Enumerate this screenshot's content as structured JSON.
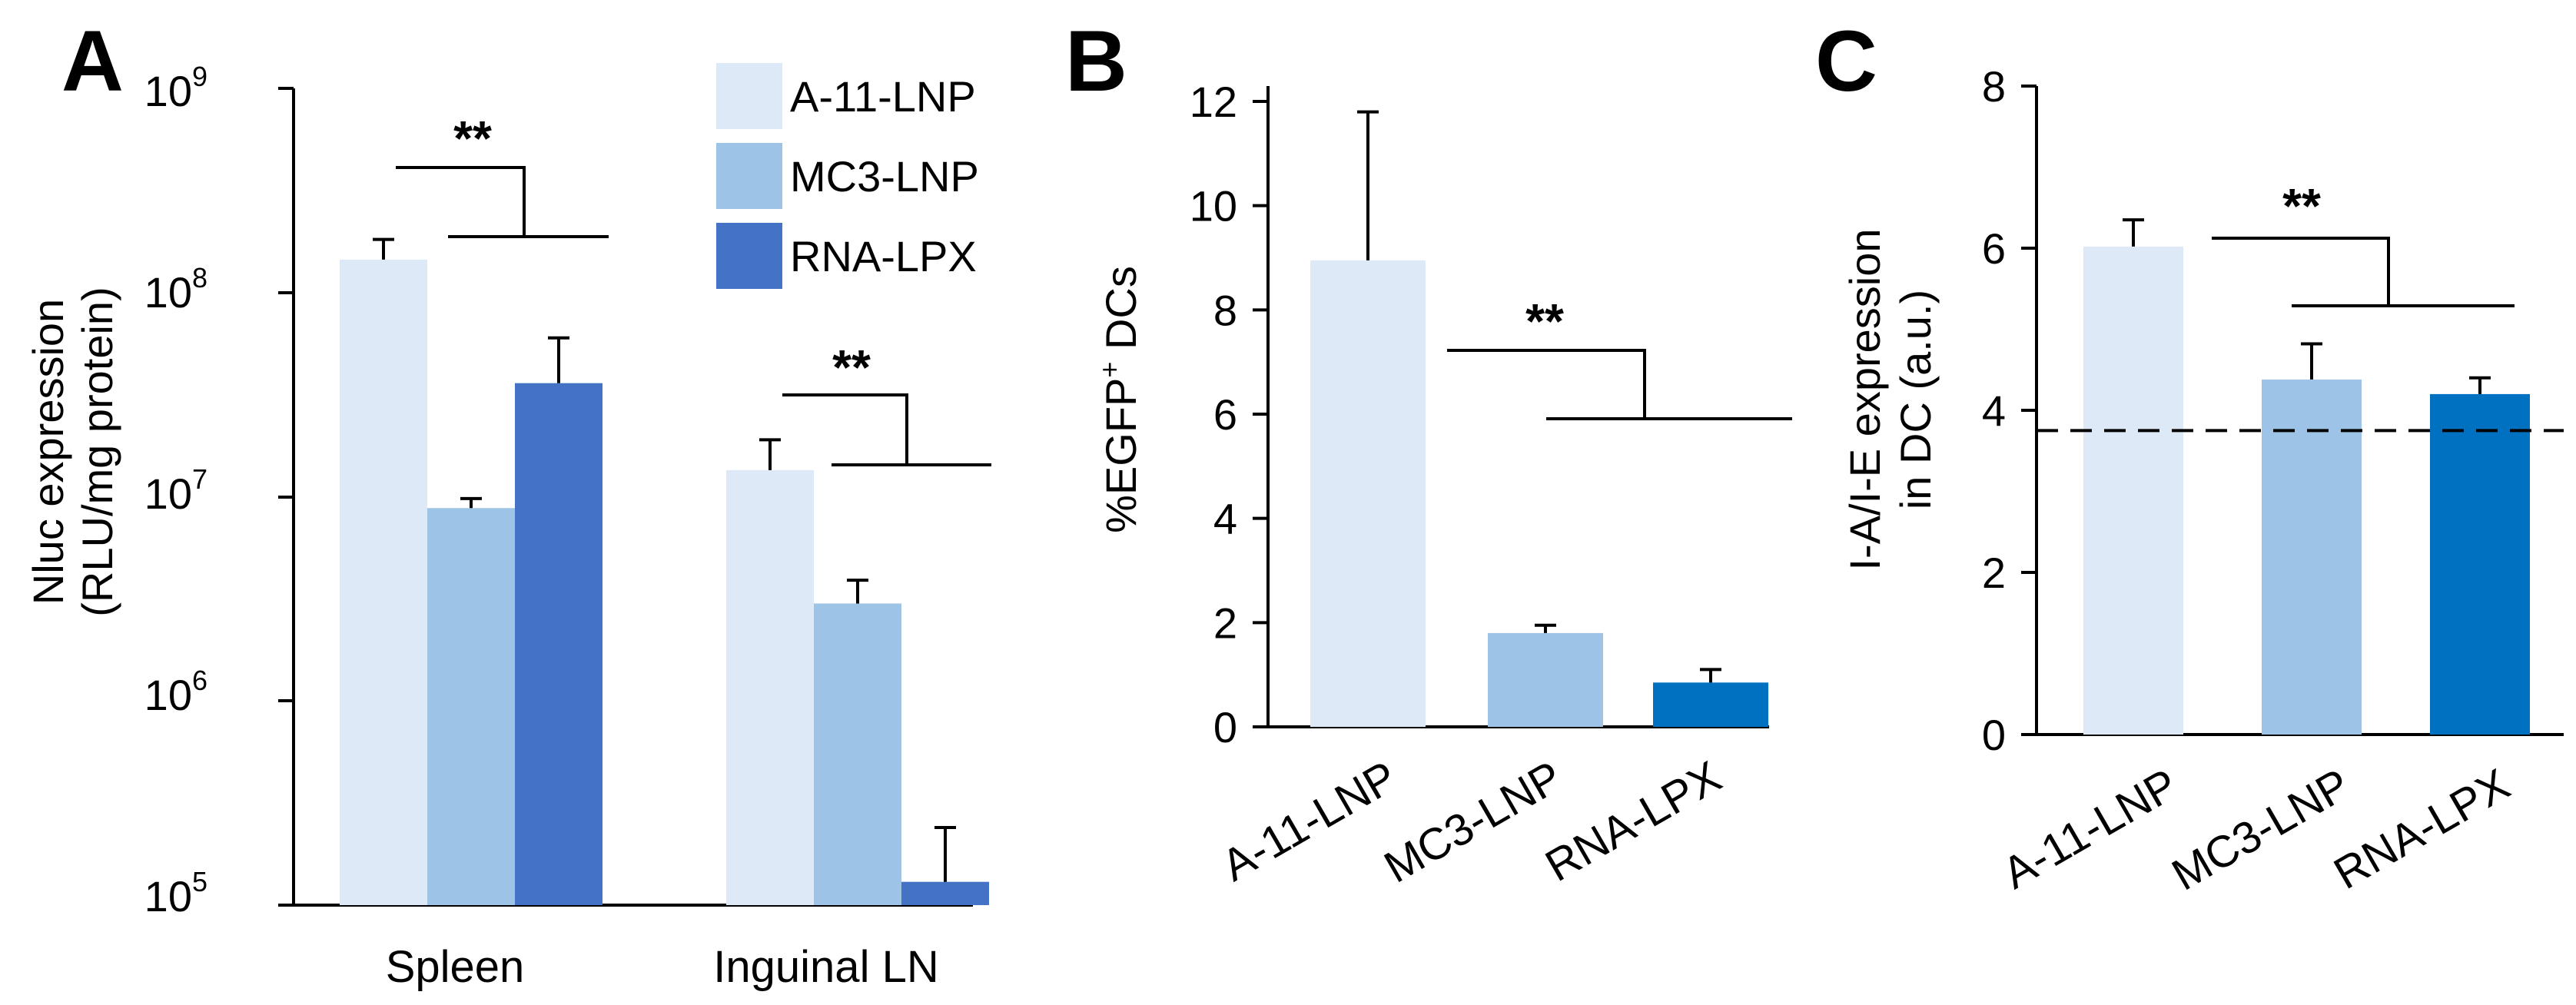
{
  "chart_data": [
    {
      "panel": "A",
      "type": "bar",
      "scale": "log",
      "ylabel_line1": "Nluc expression",
      "ylabel_line2": "(RLU/mg protein)",
      "ylim": [
        100000,
        1000000000
      ],
      "yticks": [
        {
          "value": 1000000000,
          "base": "10",
          "exp": "9"
        },
        {
          "value": 100000000,
          "base": "10",
          "exp": "8"
        },
        {
          "value": 10000000,
          "base": "10",
          "exp": "7"
        },
        {
          "value": 1000000,
          "base": "10",
          "exp": "6"
        },
        {
          "value": 100000,
          "base": "10",
          "exp": "5"
        }
      ],
      "categories": [
        "Spleen",
        "Inguinal LN"
      ],
      "series": [
        {
          "name": "A-11-LNP",
          "color": "#dde9f7",
          "values": [
            145000000,
            13500000
          ],
          "errors": [
            182000000,
            19000000
          ]
        },
        {
          "name": "MC3-LNP",
          "color": "#9dc3e6",
          "values": [
            8800000,
            3000000
          ],
          "errors": [
            9800000,
            3900000
          ]
        },
        {
          "name": "RNA-LPX",
          "color": "#4472c4",
          "values": [
            36000000,
            130000
          ],
          "errors": [
            60000000,
            240000
          ]
        }
      ],
      "significance": [
        {
          "label": "**",
          "category": "Spleen"
        },
        {
          "label": "**",
          "category": "Inguinal LN"
        }
      ]
    },
    {
      "panel": "B",
      "type": "bar",
      "ylabel_prefix": "%EGFP",
      "ylabel_sup": "+",
      "ylabel_suffix": " DCs",
      "ylim": [
        0,
        12
      ],
      "yticks": [
        "0",
        "2",
        "4",
        "6",
        "8",
        "10",
        "12"
      ],
      "categories": [
        "A-11-LNP",
        "MC3-LNP",
        "RNA-LPX"
      ],
      "colors": [
        "#dde9f7",
        "#9dc3e6",
        "#0070c0"
      ],
      "values": [
        8.95,
        1.8,
        0.85
      ],
      "errors": [
        11.8,
        1.95,
        1.1
      ],
      "significance": [
        {
          "label": "**"
        }
      ]
    },
    {
      "panel": "C",
      "type": "bar",
      "ylabel_line1": "I-A/I-E expression",
      "ylabel_line2": "in DC (a.u.)",
      "ylim": [
        0,
        8
      ],
      "yticks": [
        "0",
        "2",
        "4",
        "6",
        "8"
      ],
      "categories": [
        "A-11-LNP",
        "MC3-LNP",
        "RNA-LPX"
      ],
      "colors": [
        "#dde9f7",
        "#9dc3e6",
        "#0070c0"
      ],
      "values": [
        6.02,
        4.38,
        4.2
      ],
      "errors": [
        6.35,
        4.82,
        4.4
      ],
      "reference_line": 3.75,
      "significance": [
        {
          "label": "**"
        }
      ]
    }
  ]
}
